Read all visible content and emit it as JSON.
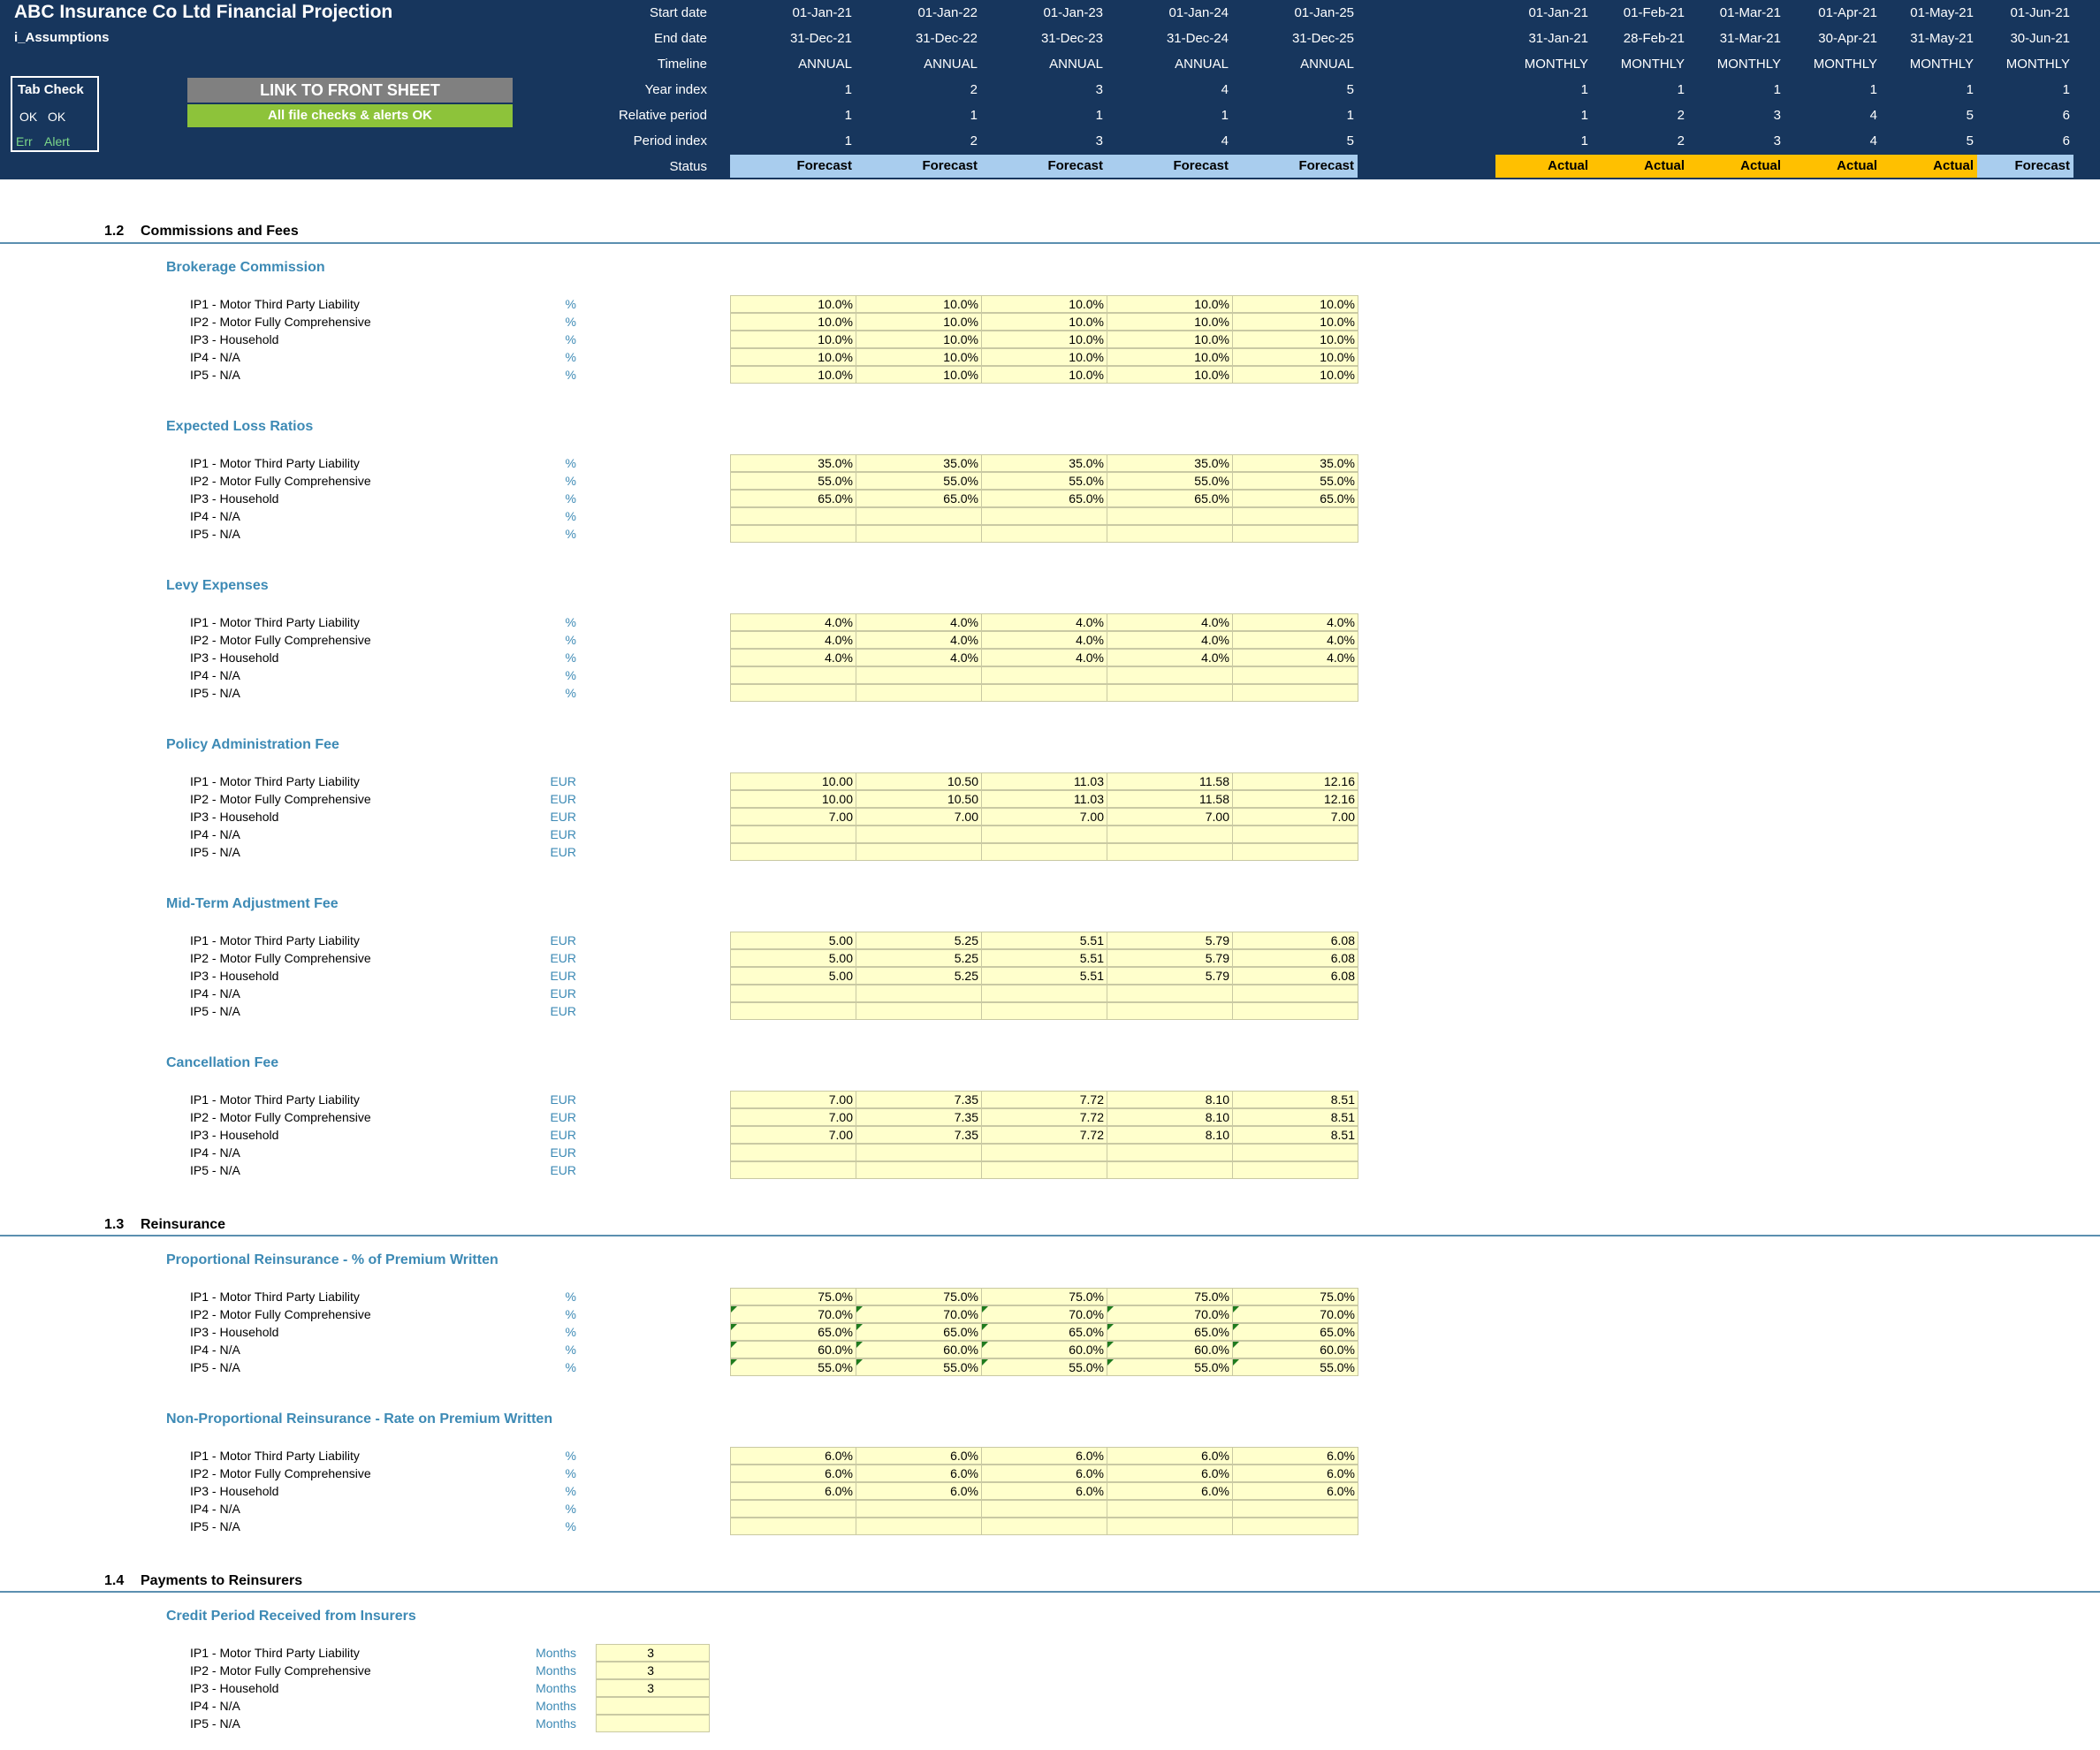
{
  "header": {
    "title": "ABC Insurance Co Ltd Financial Projection",
    "sheet": "i_Assumptions",
    "tab_check": {
      "label": "Tab Check",
      "row1": [
        "OK",
        "OK"
      ],
      "row2": [
        "Err",
        "Alert"
      ]
    },
    "link_button": "LINK TO FRONT SHEET",
    "checks_status": "All file checks & alerts OK",
    "row_labels": [
      "Start date",
      "End date",
      "Timeline",
      "Year index",
      "Relative period",
      "Period index",
      "Status"
    ],
    "annual": {
      "start": [
        "01-Jan-21",
        "01-Jan-22",
        "01-Jan-23",
        "01-Jan-24",
        "01-Jan-25"
      ],
      "end": [
        "31-Dec-21",
        "31-Dec-22",
        "31-Dec-23",
        "31-Dec-24",
        "31-Dec-25"
      ],
      "timeline": [
        "ANNUAL",
        "ANNUAL",
        "ANNUAL",
        "ANNUAL",
        "ANNUAL"
      ],
      "year_index": [
        "1",
        "2",
        "3",
        "4",
        "5"
      ],
      "relative": [
        "1",
        "1",
        "1",
        "1",
        "1"
      ],
      "period_index": [
        "1",
        "2",
        "3",
        "4",
        "5"
      ],
      "status": [
        "Forecast",
        "Forecast",
        "Forecast",
        "Forecast",
        "Forecast"
      ]
    },
    "monthly": {
      "start": [
        "01-Jan-21",
        "01-Feb-21",
        "01-Mar-21",
        "01-Apr-21",
        "01-May-21",
        "01-Jun-21"
      ],
      "end": [
        "31-Jan-21",
        "28-Feb-21",
        "31-Mar-21",
        "30-Apr-21",
        "31-May-21",
        "30-Jun-21"
      ],
      "timeline": [
        "MONTHLY",
        "MONTHLY",
        "MONTHLY",
        "MONTHLY",
        "MONTHLY",
        "MONTHLY"
      ],
      "year_index": [
        "1",
        "1",
        "1",
        "1",
        "1",
        "1"
      ],
      "relative": [
        "1",
        "2",
        "3",
        "4",
        "5",
        "6"
      ],
      "period_index": [
        "1",
        "2",
        "3",
        "4",
        "5",
        "6"
      ],
      "status": [
        "Actual",
        "Actual",
        "Actual",
        "Actual",
        "Actual",
        "Forecast"
      ]
    }
  },
  "colors": {
    "band": "#17365d",
    "forecast": "#a9cdee",
    "actual": "#ffc000",
    "input": "#ffffcc",
    "accent": "#3d8ab5",
    "ok_green": "#8dc33a"
  },
  "row_names": [
    "IP1 - Motor Third Party Liability",
    "IP2 - Motor Fully Comprehensive",
    "IP3 - Household",
    "IP4 - N/A",
    "IP5 - N/A"
  ],
  "sections": [
    {
      "number": "1.2",
      "title": "Commissions and Fees"
    },
    {
      "number": "1.3",
      "title": "Reinsurance"
    },
    {
      "number": "1.4",
      "title": "Payments to Reinsurers"
    }
  ],
  "blocks": [
    {
      "title": "Brokerage Commission",
      "unit": "%",
      "rows": [
        [
          "10.0%",
          "10.0%",
          "10.0%",
          "10.0%",
          "10.0%"
        ],
        [
          "10.0%",
          "10.0%",
          "10.0%",
          "10.0%",
          "10.0%"
        ],
        [
          "10.0%",
          "10.0%",
          "10.0%",
          "10.0%",
          "10.0%"
        ],
        [
          "10.0%",
          "10.0%",
          "10.0%",
          "10.0%",
          "10.0%"
        ],
        [
          "10.0%",
          "10.0%",
          "10.0%",
          "10.0%",
          "10.0%"
        ]
      ]
    },
    {
      "title": "Expected Loss Ratios",
      "unit": "%",
      "rows": [
        [
          "35.0%",
          "35.0%",
          "35.0%",
          "35.0%",
          "35.0%"
        ],
        [
          "55.0%",
          "55.0%",
          "55.0%",
          "55.0%",
          "55.0%"
        ],
        [
          "65.0%",
          "65.0%",
          "65.0%",
          "65.0%",
          "65.0%"
        ],
        [
          "",
          "",
          "",
          "",
          ""
        ],
        [
          "",
          "",
          "",
          "",
          ""
        ]
      ]
    },
    {
      "title": "Levy Expenses",
      "unit": "%",
      "rows": [
        [
          "4.0%",
          "4.0%",
          "4.0%",
          "4.0%",
          "4.0%"
        ],
        [
          "4.0%",
          "4.0%",
          "4.0%",
          "4.0%",
          "4.0%"
        ],
        [
          "4.0%",
          "4.0%",
          "4.0%",
          "4.0%",
          "4.0%"
        ],
        [
          "",
          "",
          "",
          "",
          ""
        ],
        [
          "",
          "",
          "",
          "",
          ""
        ]
      ]
    },
    {
      "title": "Policy Administration Fee",
      "unit": "EUR",
      "rows": [
        [
          "10.00",
          "10.50",
          "11.03",
          "11.58",
          "12.16"
        ],
        [
          "10.00",
          "10.50",
          "11.03",
          "11.58",
          "12.16"
        ],
        [
          "7.00",
          "7.00",
          "7.00",
          "7.00",
          "7.00"
        ],
        [
          "",
          "",
          "",
          "",
          ""
        ],
        [
          "",
          "",
          "",
          "",
          ""
        ]
      ]
    },
    {
      "title": "Mid-Term Adjustment Fee",
      "unit": "EUR",
      "rows": [
        [
          "5.00",
          "5.25",
          "5.51",
          "5.79",
          "6.08"
        ],
        [
          "5.00",
          "5.25",
          "5.51",
          "5.79",
          "6.08"
        ],
        [
          "5.00",
          "5.25",
          "5.51",
          "5.79",
          "6.08"
        ],
        [
          "",
          "",
          "",
          "",
          ""
        ],
        [
          "",
          "",
          "",
          "",
          ""
        ]
      ]
    },
    {
      "title": "Cancellation Fee",
      "unit": "EUR",
      "rows": [
        [
          "7.00",
          "7.35",
          "7.72",
          "8.10",
          "8.51"
        ],
        [
          "7.00",
          "7.35",
          "7.72",
          "8.10",
          "8.51"
        ],
        [
          "7.00",
          "7.35",
          "7.72",
          "8.10",
          "8.51"
        ],
        [
          "",
          "",
          "",
          "",
          ""
        ],
        [
          "",
          "",
          "",
          "",
          ""
        ]
      ]
    },
    {
      "title": "Proportional Reinsurance - % of Premium Written",
      "unit": "%",
      "rows": [
        [
          "75.0%",
          "75.0%",
          "75.0%",
          "75.0%",
          "75.0%"
        ],
        [
          "70.0%",
          "70.0%",
          "70.0%",
          "70.0%",
          "70.0%"
        ],
        [
          "65.0%",
          "65.0%",
          "65.0%",
          "65.0%",
          "65.0%"
        ],
        [
          "60.0%",
          "60.0%",
          "60.0%",
          "60.0%",
          "60.0%"
        ],
        [
          "55.0%",
          "55.0%",
          "55.0%",
          "55.0%",
          "55.0%"
        ]
      ]
    },
    {
      "title": "Non-Proportional Reinsurance - Rate on Premium Written",
      "unit": "%",
      "rows": [
        [
          "6.0%",
          "6.0%",
          "6.0%",
          "6.0%",
          "6.0%"
        ],
        [
          "6.0%",
          "6.0%",
          "6.0%",
          "6.0%",
          "6.0%"
        ],
        [
          "6.0%",
          "6.0%",
          "6.0%",
          "6.0%",
          "6.0%"
        ],
        [
          "",
          "",
          "",
          "",
          ""
        ],
        [
          "",
          "",
          "",
          "",
          ""
        ]
      ]
    },
    {
      "title": "Credit Period Received from Insurers",
      "unit": "Months",
      "rows": [
        [
          "3"
        ],
        [
          "3"
        ],
        [
          "3"
        ],
        [
          ""
        ],
        [
          ""
        ]
      ]
    }
  ]
}
